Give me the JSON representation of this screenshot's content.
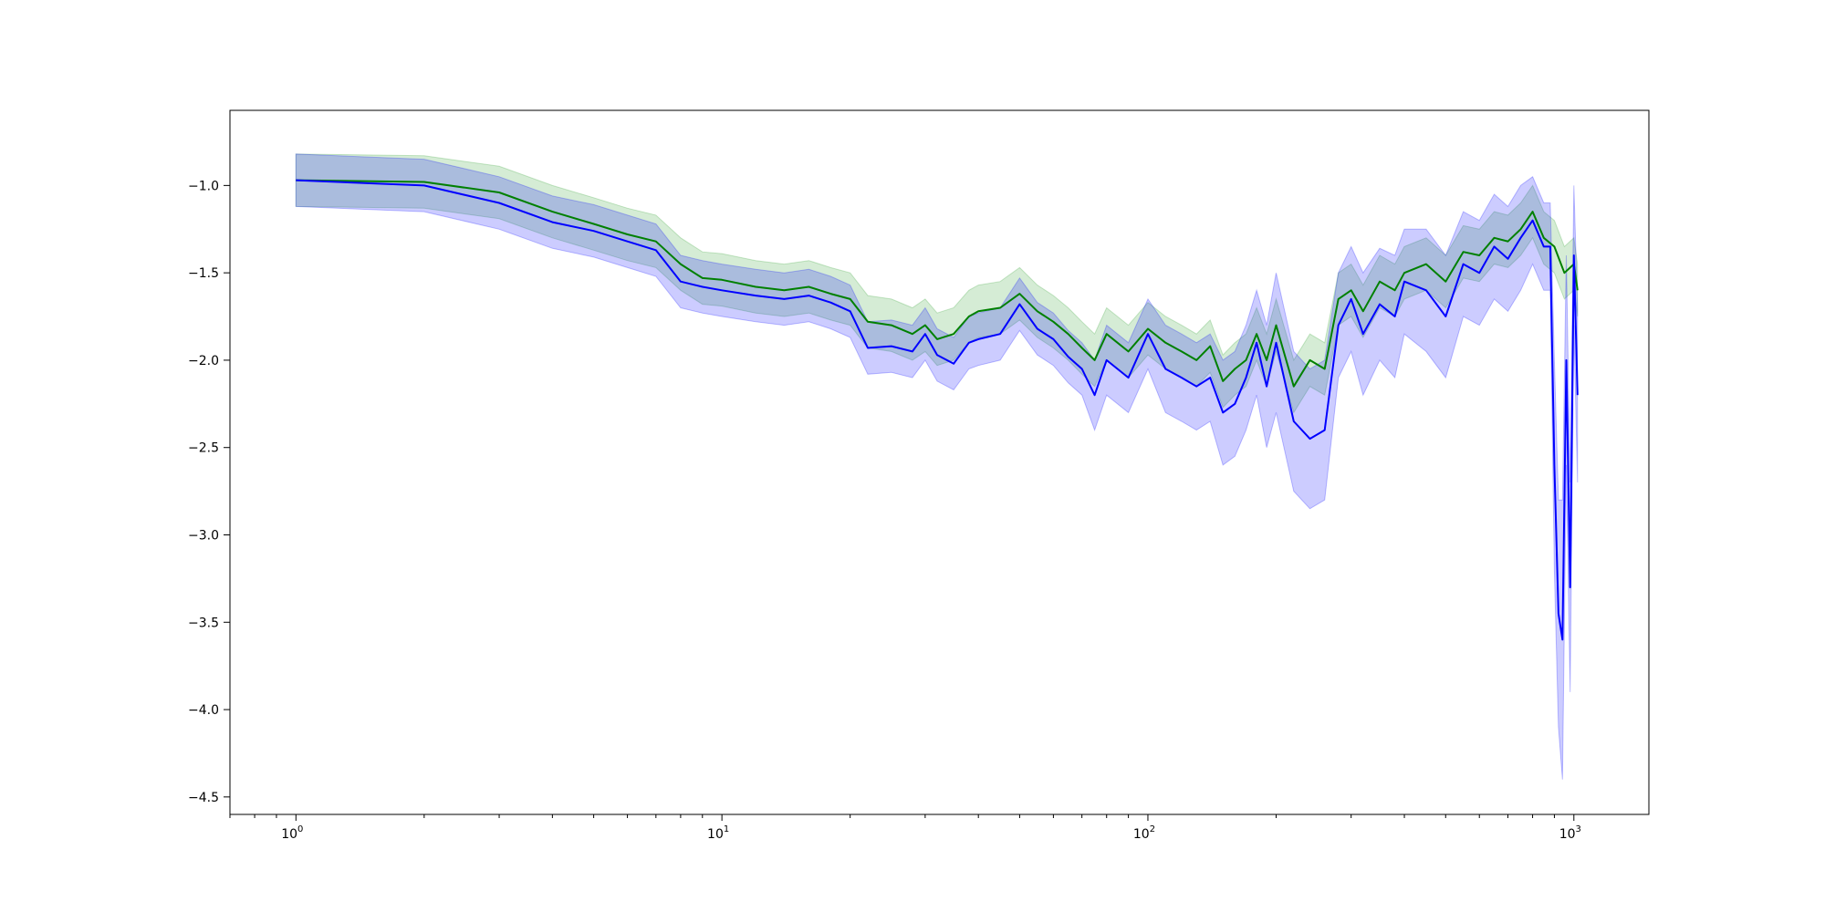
{
  "chart_data": {
    "type": "line",
    "title": "",
    "xlabel": "",
    "ylabel": "",
    "x_scale": "log",
    "xlim": [
      0.7,
      1500
    ],
    "ylim": [
      -4.6,
      -0.57
    ],
    "grid": false,
    "legend": "none",
    "x_ticks": [
      {
        "value": 1,
        "base": "10",
        "exp": "0"
      },
      {
        "value": 10,
        "base": "10",
        "exp": "1"
      },
      {
        "value": 100,
        "base": "10",
        "exp": "2"
      },
      {
        "value": 1000,
        "base": "10",
        "exp": "3"
      }
    ],
    "y_ticks": [
      {
        "value": -1.0,
        "label": "−1.0"
      },
      {
        "value": -1.5,
        "label": "−1.5"
      },
      {
        "value": -2.0,
        "label": "−2.0"
      },
      {
        "value": -2.5,
        "label": "−2.5"
      },
      {
        "value": -3.0,
        "label": "−3.0"
      },
      {
        "value": -3.5,
        "label": "−3.5"
      },
      {
        "value": -4.0,
        "label": "−4.0"
      },
      {
        "value": -4.5,
        "label": "−4.5"
      }
    ],
    "series": [
      {
        "color": "#008000",
        "band_color": "#2ca02c",
        "x": [
          1,
          2,
          3,
          4,
          5,
          6,
          7,
          8,
          9,
          10,
          12,
          14,
          16,
          18,
          20,
          22,
          25,
          28,
          30,
          32,
          35,
          38,
          40,
          45,
          50,
          55,
          60,
          65,
          70,
          75,
          80,
          90,
          100,
          110,
          120,
          130,
          140,
          150,
          160,
          170,
          180,
          190,
          200,
          220,
          240,
          260,
          280,
          300,
          320,
          350,
          380,
          400,
          450,
          500,
          550,
          600,
          650,
          700,
          750,
          800,
          850,
          900,
          950,
          1000,
          1020
        ],
        "y": [
          -0.97,
          -0.98,
          -1.04,
          -1.15,
          -1.22,
          -1.28,
          -1.32,
          -1.45,
          -1.53,
          -1.54,
          -1.58,
          -1.6,
          -1.58,
          -1.62,
          -1.65,
          -1.78,
          -1.8,
          -1.85,
          -1.8,
          -1.88,
          -1.85,
          -1.75,
          -1.72,
          -1.7,
          -1.62,
          -1.72,
          -1.78,
          -1.85,
          -1.93,
          -2.0,
          -1.85,
          -1.95,
          -1.82,
          -1.9,
          -1.95,
          -2.0,
          -1.92,
          -2.12,
          -2.05,
          -2.0,
          -1.85,
          -2.0,
          -1.8,
          -2.15,
          -2.0,
          -2.05,
          -1.65,
          -1.6,
          -1.72,
          -1.55,
          -1.6,
          -1.5,
          -1.45,
          -1.55,
          -1.38,
          -1.4,
          -1.3,
          -1.32,
          -1.25,
          -1.15,
          -1.3,
          -1.35,
          -1.5,
          -1.45,
          -1.6
        ],
        "lower": [
          -1.12,
          -1.13,
          -1.19,
          -1.3,
          -1.37,
          -1.43,
          -1.47,
          -1.6,
          -1.68,
          -1.69,
          -1.73,
          -1.75,
          -1.73,
          -1.77,
          -1.8,
          -1.93,
          -1.95,
          -2.0,
          -1.95,
          -2.03,
          -2.0,
          -1.9,
          -1.87,
          -1.85,
          -1.77,
          -1.87,
          -1.93,
          -2.0,
          -2.08,
          -2.15,
          -2.0,
          -2.1,
          -1.97,
          -2.05,
          -2.1,
          -2.15,
          -2.07,
          -2.27,
          -2.2,
          -2.15,
          -2.0,
          -2.15,
          -1.95,
          -2.3,
          -2.15,
          -2.2,
          -1.8,
          -1.75,
          -1.87,
          -1.7,
          -1.75,
          -1.65,
          -1.6,
          -1.7,
          -1.53,
          -1.55,
          -1.45,
          -1.47,
          -1.4,
          -1.3,
          -1.45,
          -1.5,
          -1.65,
          -1.6,
          -1.75
        ],
        "upper": [
          -0.82,
          -0.83,
          -0.89,
          -1.0,
          -1.07,
          -1.13,
          -1.17,
          -1.3,
          -1.38,
          -1.39,
          -1.43,
          -1.45,
          -1.43,
          -1.47,
          -1.5,
          -1.63,
          -1.65,
          -1.7,
          -1.65,
          -1.73,
          -1.7,
          -1.6,
          -1.57,
          -1.55,
          -1.47,
          -1.57,
          -1.63,
          -1.7,
          -1.78,
          -1.85,
          -1.7,
          -1.8,
          -1.67,
          -1.75,
          -1.8,
          -1.85,
          -1.77,
          -1.97,
          -1.9,
          -1.85,
          -1.7,
          -1.85,
          -1.65,
          -2.0,
          -1.85,
          -1.9,
          -1.5,
          -1.45,
          -1.57,
          -1.4,
          -1.45,
          -1.35,
          -1.3,
          -1.4,
          -1.23,
          -1.25,
          -1.15,
          -1.17,
          -1.1,
          -1.0,
          -1.15,
          -1.2,
          -1.35,
          -1.3,
          -1.45
        ]
      },
      {
        "color": "#0000ff",
        "band_color": "#0000ff",
        "x": [
          1,
          2,
          3,
          4,
          5,
          6,
          7,
          8,
          9,
          10,
          12,
          14,
          16,
          18,
          20,
          22,
          25,
          28,
          30,
          32,
          35,
          38,
          40,
          45,
          50,
          55,
          60,
          65,
          70,
          75,
          80,
          90,
          100,
          110,
          120,
          130,
          140,
          150,
          160,
          170,
          180,
          190,
          200,
          220,
          240,
          260,
          280,
          300,
          320,
          350,
          380,
          400,
          450,
          500,
          550,
          600,
          650,
          700,
          750,
          800,
          850,
          880,
          900,
          920,
          940,
          960,
          980,
          1000,
          1020
        ],
        "y": [
          -0.97,
          -1.0,
          -1.1,
          -1.21,
          -1.26,
          -1.32,
          -1.37,
          -1.55,
          -1.58,
          -1.6,
          -1.63,
          -1.65,
          -1.63,
          -1.67,
          -1.72,
          -1.93,
          -1.92,
          -1.95,
          -1.85,
          -1.97,
          -2.02,
          -1.9,
          -1.88,
          -1.85,
          -1.68,
          -1.82,
          -1.88,
          -1.98,
          -2.05,
          -2.2,
          -2.0,
          -2.1,
          -1.85,
          -2.05,
          -2.1,
          -2.15,
          -2.1,
          -2.3,
          -2.25,
          -2.1,
          -1.9,
          -2.15,
          -1.9,
          -2.35,
          -2.45,
          -2.4,
          -1.8,
          -1.65,
          -1.85,
          -1.68,
          -1.75,
          -1.55,
          -1.6,
          -1.75,
          -1.45,
          -1.5,
          -1.35,
          -1.42,
          -1.3,
          -1.2,
          -1.35,
          -1.35,
          -2.6,
          -3.45,
          -3.6,
          -2.0,
          -3.3,
          -1.4,
          -2.2
        ],
        "lower": [
          -1.12,
          -1.15,
          -1.25,
          -1.36,
          -1.41,
          -1.47,
          -1.52,
          -1.7,
          -1.73,
          -1.75,
          -1.78,
          -1.8,
          -1.78,
          -1.82,
          -1.87,
          -2.08,
          -2.07,
          -2.1,
          -2.0,
          -2.12,
          -2.17,
          -2.05,
          -2.03,
          -2.0,
          -1.83,
          -1.97,
          -2.03,
          -2.13,
          -2.2,
          -2.4,
          -2.2,
          -2.3,
          -2.05,
          -2.3,
          -2.35,
          -2.4,
          -2.35,
          -2.6,
          -2.55,
          -2.4,
          -2.2,
          -2.5,
          -2.3,
          -2.75,
          -2.85,
          -2.8,
          -2.1,
          -1.95,
          -2.2,
          -2.0,
          -2.1,
          -1.85,
          -1.95,
          -2.1,
          -1.75,
          -1.8,
          -1.65,
          -1.72,
          -1.6,
          -1.45,
          -1.6,
          -1.6,
          -3.2,
          -4.1,
          -4.4,
          -2.6,
          -3.9,
          -1.8,
          -2.7
        ],
        "upper": [
          -0.82,
          -0.85,
          -0.95,
          -1.06,
          -1.11,
          -1.17,
          -1.22,
          -1.4,
          -1.43,
          -1.45,
          -1.48,
          -1.5,
          -1.48,
          -1.52,
          -1.57,
          -1.78,
          -1.77,
          -1.8,
          -1.7,
          -1.82,
          -1.87,
          -1.75,
          -1.73,
          -1.7,
          -1.53,
          -1.67,
          -1.73,
          -1.83,
          -1.9,
          -2.0,
          -1.8,
          -1.9,
          -1.65,
          -1.8,
          -1.85,
          -1.9,
          -1.85,
          -2.0,
          -1.95,
          -1.8,
          -1.6,
          -1.8,
          -1.5,
          -1.95,
          -2.05,
          -2.0,
          -1.5,
          -1.35,
          -1.5,
          -1.36,
          -1.4,
          -1.25,
          -1.25,
          -1.4,
          -1.15,
          -1.2,
          -1.05,
          -1.12,
          -1.0,
          -0.95,
          -1.1,
          -1.1,
          -2.0,
          -2.8,
          -2.8,
          -1.4,
          -2.7,
          -1.0,
          -1.7
        ]
      }
    ]
  }
}
